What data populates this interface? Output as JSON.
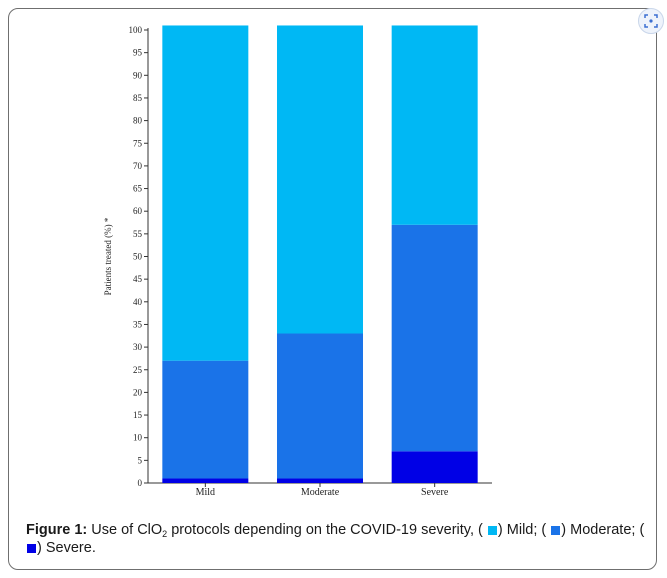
{
  "chart_data": {
    "type": "bar",
    "stacked": true,
    "categories": [
      "Mild",
      "Moderate",
      "Severe"
    ],
    "series": [
      {
        "name": "Severe",
        "color": "#0000e6",
        "values": [
          1,
          1,
          7
        ]
      },
      {
        "name": "Moderate",
        "color": "#1a73e8",
        "values": [
          26,
          32,
          50
        ]
      },
      {
        "name": "Mild",
        "color": "#00b8f4",
        "values": [
          74,
          68,
          44
        ]
      }
    ],
    "yticks": [
      0,
      5,
      10,
      15,
      20,
      25,
      30,
      35,
      40,
      45,
      50,
      55,
      60,
      65,
      70,
      75,
      80,
      85,
      90,
      95,
      100
    ],
    "ylim": [
      0,
      100
    ],
    "ylabel": "Patients treated (%) *",
    "xlabel": "",
    "grid": false
  },
  "caption": {
    "label": "Figure 1:",
    "text_before_sub": " Use of ClO",
    "subscript": "2",
    "text_after_sub": " protocols depending on the COVID-19 severity, (",
    "legend": [
      {
        "name": "Mild",
        "color": "#00b8f4"
      },
      {
        "name": "Moderate",
        "color": "#1a73e8"
      },
      {
        "name": "Severe",
        "color": "#0000e6"
      }
    ]
  },
  "ui": {
    "expand_icon": "expand-icon"
  }
}
